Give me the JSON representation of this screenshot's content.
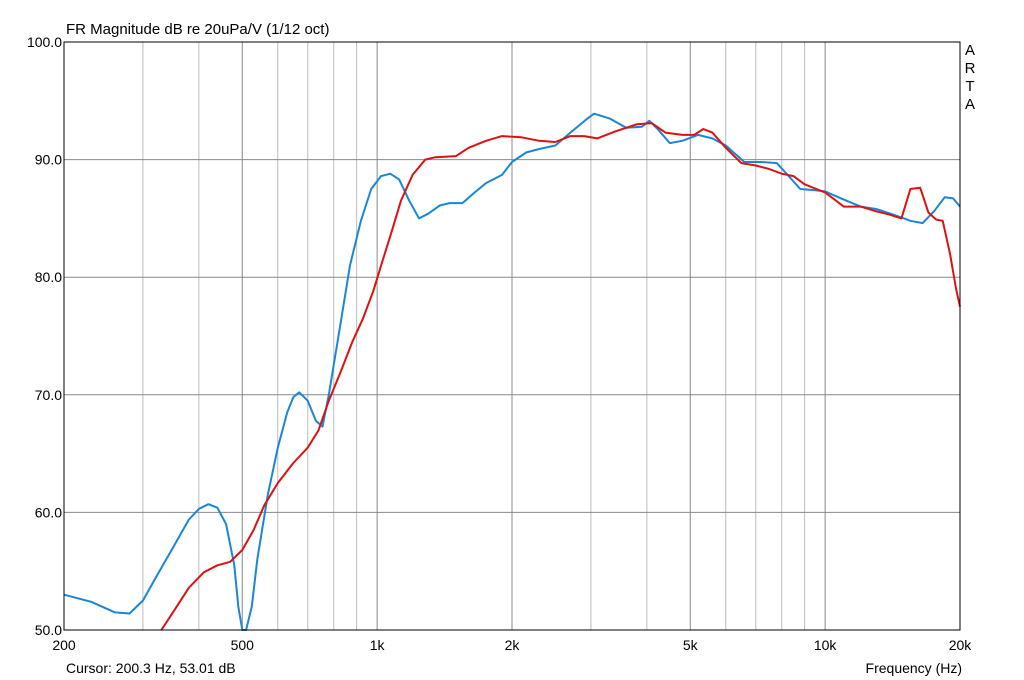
{
  "chart_data": {
    "type": "line",
    "title": "FR Magnitude dB re 20uPa/V (1/12 oct)",
    "brand": "ARTA",
    "cursor_readout": "Cursor: 200.3 Hz, 53.01 dB",
    "xlabel": "Frequency (Hz)",
    "ylabel": "",
    "x_scale": "log",
    "xlim": [
      200,
      20000
    ],
    "ylim": [
      50,
      100
    ],
    "grid": true,
    "x_ticks": [
      {
        "value": 200,
        "label": "200"
      },
      {
        "value": 500,
        "label": "500"
      },
      {
        "value": 1000,
        "label": "1k"
      },
      {
        "value": 2000,
        "label": "2k"
      },
      {
        "value": 5000,
        "label": "5k"
      },
      {
        "value": 10000,
        "label": "10k"
      },
      {
        "value": 20000,
        "label": "20k"
      }
    ],
    "y_ticks": [
      {
        "value": 50,
        "label": "50.0"
      },
      {
        "value": 60,
        "label": "60.0"
      },
      {
        "value": 70,
        "label": "70.0"
      },
      {
        "value": 80,
        "label": "80.0"
      },
      {
        "value": 90,
        "label": "90.0"
      },
      {
        "value": 100,
        "label": "100.0"
      }
    ],
    "minor_x_gridlines": [
      300,
      400,
      600,
      700,
      800,
      900,
      3000,
      4000,
      6000,
      7000,
      8000,
      9000
    ],
    "series": [
      {
        "color": "#1a86d8",
        "points": [
          [
            200,
            53.0
          ],
          [
            230,
            52.4
          ],
          [
            260,
            51.5
          ],
          [
            280,
            51.4
          ],
          [
            300,
            52.5
          ],
          [
            320,
            54.4
          ],
          [
            350,
            57.0
          ],
          [
            380,
            59.4
          ],
          [
            400,
            60.3
          ],
          [
            420,
            60.7
          ],
          [
            440,
            60.4
          ],
          [
            460,
            59.0
          ],
          [
            480,
            55.5
          ],
          [
            490,
            52.0
          ],
          [
            500,
            50.0
          ],
          [
            510,
            50.0
          ],
          [
            525,
            52.0
          ],
          [
            540,
            56.0
          ],
          [
            570,
            61.5
          ],
          [
            600,
            65.5
          ],
          [
            630,
            68.5
          ],
          [
            650,
            69.8
          ],
          [
            670,
            70.2
          ],
          [
            700,
            69.5
          ],
          [
            730,
            67.8
          ],
          [
            755,
            67.3
          ],
          [
            780,
            70.0
          ],
          [
            820,
            75.0
          ],
          [
            870,
            81.0
          ],
          [
            920,
            84.8
          ],
          [
            970,
            87.5
          ],
          [
            1020,
            88.6
          ],
          [
            1070,
            88.8
          ],
          [
            1120,
            88.3
          ],
          [
            1180,
            86.5
          ],
          [
            1240,
            85.0
          ],
          [
            1300,
            85.4
          ],
          [
            1380,
            86.1
          ],
          [
            1450,
            86.3
          ],
          [
            1550,
            86.3
          ],
          [
            1650,
            87.2
          ],
          [
            1750,
            88.0
          ],
          [
            1900,
            88.7
          ],
          [
            2000,
            89.8
          ],
          [
            2150,
            90.6
          ],
          [
            2300,
            90.9
          ],
          [
            2500,
            91.2
          ],
          [
            2700,
            92.3
          ],
          [
            2950,
            93.5
          ],
          [
            3050,
            93.9
          ],
          [
            3300,
            93.5
          ],
          [
            3600,
            92.7
          ],
          [
            3900,
            92.8
          ],
          [
            4050,
            93.3
          ],
          [
            4250,
            92.5
          ],
          [
            4500,
            91.4
          ],
          [
            4800,
            91.6
          ],
          [
            5200,
            92.1
          ],
          [
            5600,
            91.8
          ],
          [
            6000,
            91.2
          ],
          [
            6600,
            89.8
          ],
          [
            7200,
            89.8
          ],
          [
            7800,
            89.7
          ],
          [
            8200,
            88.8
          ],
          [
            8800,
            87.5
          ],
          [
            9500,
            87.4
          ],
          [
            10000,
            87.3
          ],
          [
            11000,
            86.6
          ],
          [
            12000,
            86.0
          ],
          [
            13000,
            85.8
          ],
          [
            14000,
            85.4
          ],
          [
            15000,
            85.0
          ],
          [
            15500,
            84.8
          ],
          [
            16500,
            84.6
          ],
          [
            17500,
            85.6
          ],
          [
            18500,
            86.8
          ],
          [
            19300,
            86.7
          ],
          [
            20000,
            86.0
          ]
        ]
      },
      {
        "color": "#dd1111",
        "points": [
          [
            330,
            50.0
          ],
          [
            350,
            51.5
          ],
          [
            380,
            53.6
          ],
          [
            410,
            54.9
          ],
          [
            440,
            55.5
          ],
          [
            470,
            55.8
          ],
          [
            500,
            56.8
          ],
          [
            530,
            58.5
          ],
          [
            560,
            60.6
          ],
          [
            600,
            62.5
          ],
          [
            650,
            64.2
          ],
          [
            700,
            65.5
          ],
          [
            740,
            67.0
          ],
          [
            780,
            69.5
          ],
          [
            830,
            72.0
          ],
          [
            880,
            74.5
          ],
          [
            930,
            76.5
          ],
          [
            980,
            78.8
          ],
          [
            1030,
            81.5
          ],
          [
            1080,
            84.0
          ],
          [
            1130,
            86.5
          ],
          [
            1200,
            88.7
          ],
          [
            1280,
            90.0
          ],
          [
            1350,
            90.2
          ],
          [
            1500,
            90.3
          ],
          [
            1600,
            91.0
          ],
          [
            1750,
            91.6
          ],
          [
            1900,
            92.0
          ],
          [
            2100,
            91.9
          ],
          [
            2300,
            91.6
          ],
          [
            2500,
            91.5
          ],
          [
            2700,
            92.0
          ],
          [
            2900,
            92.0
          ],
          [
            3100,
            91.8
          ],
          [
            3400,
            92.4
          ],
          [
            3800,
            93.0
          ],
          [
            4100,
            93.1
          ],
          [
            4400,
            92.3
          ],
          [
            4800,
            92.1
          ],
          [
            5100,
            92.1
          ],
          [
            5350,
            92.6
          ],
          [
            5600,
            92.3
          ],
          [
            6000,
            91.0
          ],
          [
            6500,
            89.7
          ],
          [
            7000,
            89.5
          ],
          [
            7500,
            89.2
          ],
          [
            8000,
            88.8
          ],
          [
            8500,
            88.6
          ],
          [
            9000,
            87.9
          ],
          [
            10000,
            87.2
          ],
          [
            10500,
            86.6
          ],
          [
            11000,
            86.0
          ],
          [
            12000,
            86.0
          ],
          [
            13000,
            85.6
          ],
          [
            14000,
            85.3
          ],
          [
            14800,
            85.0
          ],
          [
            15500,
            87.5
          ],
          [
            16300,
            87.6
          ],
          [
            17000,
            85.5
          ],
          [
            17700,
            84.9
          ],
          [
            18300,
            84.8
          ],
          [
            19000,
            82.0
          ],
          [
            19600,
            79.0
          ],
          [
            20000,
            77.5
          ]
        ]
      }
    ]
  }
}
